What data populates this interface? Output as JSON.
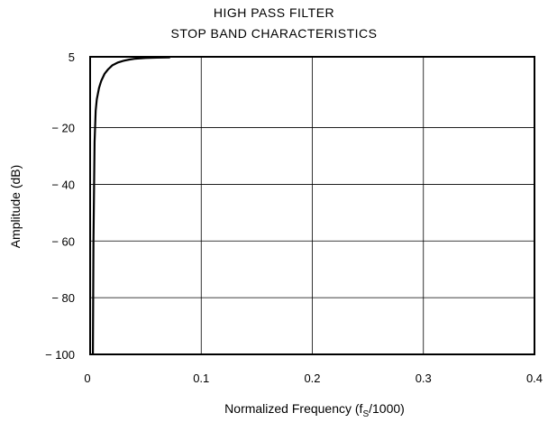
{
  "chart_data": {
    "type": "line",
    "title": [
      "HIGH PASS FILTER",
      "STOP BAND CHARACTERISTICS"
    ],
    "xlabel": {
      "text": "Normalized Frequency (f",
      "subscript": "S",
      "suffix": "/1000)"
    },
    "ylabel": "Amplitude (dB)",
    "xlim": [
      0,
      0.4
    ],
    "ylim": [
      -100,
      5
    ],
    "xticks": [
      0,
      0.1,
      0.2,
      0.3,
      0.4
    ],
    "xtick_labels": [
      "0",
      "0.1",
      "0.2",
      "0.3",
      "0.4"
    ],
    "yticks": [
      5,
      -20,
      -40,
      -60,
      -80,
      -100
    ],
    "ytick_labels": [
      "5",
      "− 20",
      "− 40",
      "− 60",
      "− 80",
      "− 100"
    ],
    "grid": true,
    "series": [
      {
        "x": [
          0.0025,
          0.003,
          0.004,
          0.005,
          0.006,
          0.008,
          0.01,
          0.013,
          0.016,
          0.02,
          0.025,
          0.03,
          0.035,
          0.04,
          0.05,
          0.06,
          0.072
        ],
        "y": [
          -100,
          -60,
          -25,
          -14,
          -10,
          -6,
          -3.5,
          -1,
          0.5,
          2,
          3,
          3.6,
          4,
          4.3,
          4.6,
          4.7,
          4.8
        ],
        "color": "#000000"
      }
    ]
  }
}
